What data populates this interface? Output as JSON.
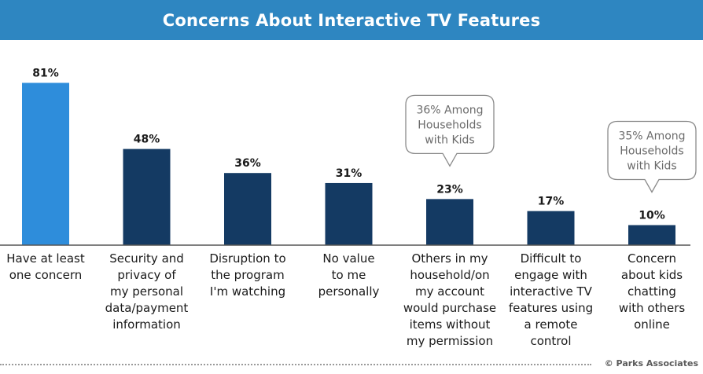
{
  "title": "Concerns About Interactive TV Features",
  "source": "© Parks Associates",
  "colors": {
    "title_bg": "#2e86c1",
    "highlight": "#2e8ddb",
    "bar": "#143a63"
  },
  "chart_data": {
    "type": "bar",
    "title": "Concerns About Interactive TV Features",
    "xlabel": "",
    "ylabel": "",
    "ylim": [
      0,
      100
    ],
    "grid": false,
    "categories": [
      [
        "Have at least",
        "one concern"
      ],
      [
        "Security and",
        "privacy of",
        "my personal",
        "data/payment",
        "information"
      ],
      [
        "Disruption to",
        "the program",
        "I'm watching"
      ],
      [
        "No value",
        "to me",
        "personally"
      ],
      [
        "Others in my",
        "household/on",
        "my account",
        "would purchase",
        "items without",
        "my permission"
      ],
      [
        "Difficult to",
        "engage with",
        "interactive TV",
        "features using",
        "a remote",
        "control"
      ],
      [
        "Concern",
        "about kids",
        "chatting",
        "with others",
        "online"
      ]
    ],
    "values": [
      81,
      48,
      36,
      31,
      23,
      17,
      10
    ],
    "value_labels": [
      "81%",
      "48%",
      "36%",
      "31%",
      "23%",
      "17%",
      "10%"
    ],
    "highlight_index": 0,
    "annotations": [
      {
        "category_index": 4,
        "lines": [
          "36% Among",
          "Households",
          "with Kids"
        ]
      },
      {
        "category_index": 6,
        "lines": [
          "35% Among",
          "Households",
          "with Kids"
        ]
      }
    ]
  }
}
